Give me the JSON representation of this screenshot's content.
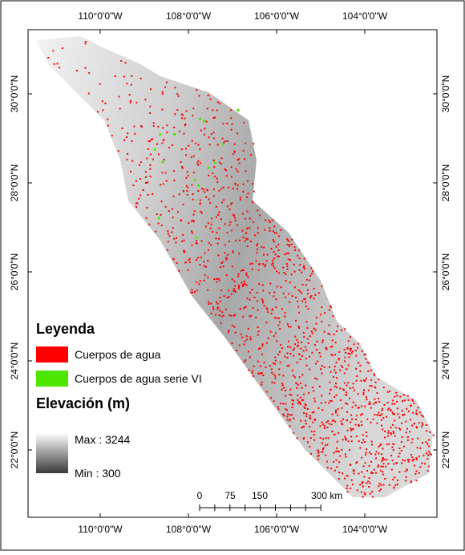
{
  "longitude_labels": [
    "110°0'0\"W",
    "108°0'0\"W",
    "106°0'0\"W",
    "104°0'0\"W"
  ],
  "latitude_labels": [
    "30°0'0\"N",
    "28°0'0\"N",
    "26°0'0\"N",
    "24°0'0\"N",
    "22°0'0\"N"
  ],
  "legend": {
    "title": "Leyenda",
    "items": [
      "Cuerpos de agua",
      "Cuerpos de agua serie VI"
    ],
    "elevation_title": "Elevación (m)",
    "max": "Max : 3244",
    "min": "Min : 300"
  },
  "scale_bar": [
    "0",
    "75",
    "150",
    "300 km"
  ]
}
